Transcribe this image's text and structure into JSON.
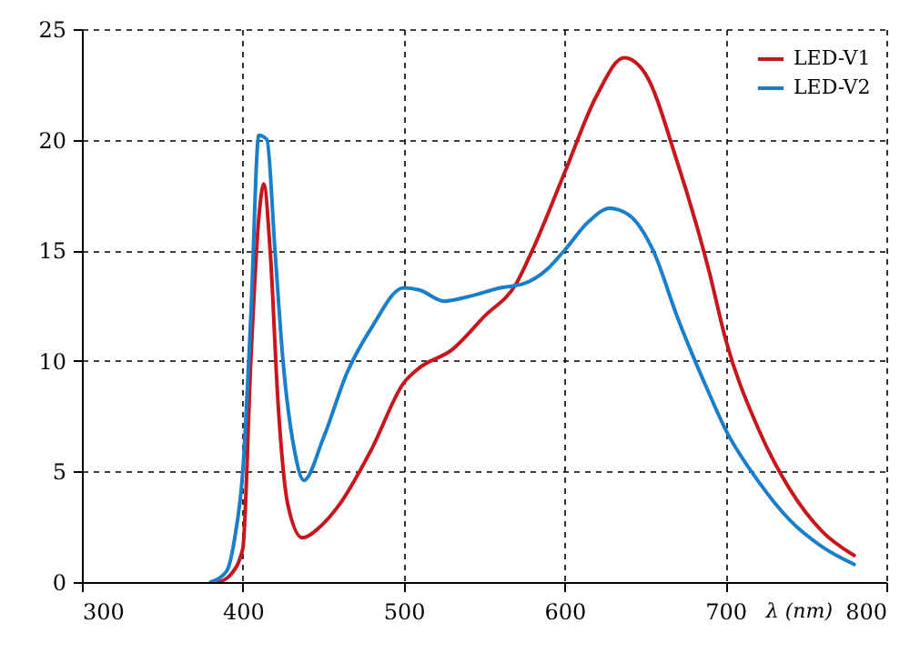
{
  "chart_data": {
    "type": "line",
    "xlabel": "λ (nm)",
    "xlim": [
      300,
      800
    ],
    "xticks": [
      300,
      400,
      500,
      600,
      700,
      800
    ],
    "ylim": [
      0,
      25
    ],
    "yticks": [
      0,
      5,
      10,
      15,
      20,
      25
    ],
    "grid": true,
    "legend": "top right",
    "line_style": "solid",
    "series": [
      {
        "name": "LED-V1",
        "color": "#c8161d",
        "x": [
          385,
          392,
          400,
          405,
          410,
          413,
          417,
          422,
          428,
          437,
          448,
          460,
          480,
          500,
          510,
          530,
          550,
          570,
          580,
          600,
          620,
          637,
          650,
          670,
          690,
          700,
          720,
          740,
          760,
          780
        ],
        "values": [
          0,
          0.3,
          1.5,
          10,
          16.5,
          18,
          15,
          8,
          3.5,
          2.0,
          2.5,
          3.5,
          6,
          9,
          9.7,
          10.5,
          12,
          13.5,
          15,
          18.5,
          22,
          23.7,
          23,
          19,
          14,
          11,
          7,
          4.2,
          2.3,
          1.2
        ]
      },
      {
        "name": "LED-V2",
        "color": "#1a7fcb",
        "x": [
          380,
          390,
          395,
          400,
          405,
          410,
          415,
          420,
          425,
          432,
          438,
          450,
          465,
          480,
          500,
          510,
          525,
          540,
          560,
          575,
          590,
          600,
          615,
          628,
          640,
          655,
          670,
          690,
          700,
          720,
          740,
          760,
          780
        ],
        "values": [
          0,
          0.5,
          2,
          5,
          12,
          20.2,
          20,
          15,
          10,
          6,
          4.6,
          6.5,
          9.5,
          11.5,
          13.3,
          13.2,
          12.7,
          12.9,
          13.3,
          13.5,
          14.2,
          15,
          16.3,
          16.9,
          16.6,
          15,
          12,
          8.5,
          6.9,
          4.6,
          2.8,
          1.6,
          0.8
        ]
      }
    ]
  }
}
